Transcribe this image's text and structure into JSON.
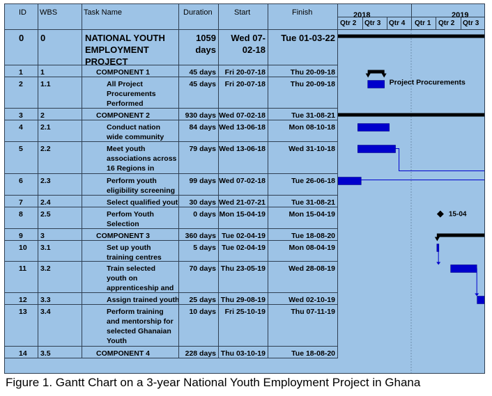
{
  "caption": "Figure 1. Gantt Chart on a 3-year National Youth Employment Project in Ghana",
  "columns": {
    "id": "ID",
    "wbs": "WBS",
    "task": "Task Name",
    "duration": "Duration",
    "start": "Start",
    "finish": "Finish"
  },
  "timeline": {
    "years": [
      {
        "label": "2018"
      },
      {
        "label": "2019"
      }
    ],
    "quarters": [
      "Qtr 2",
      "Qtr 3",
      "Qtr 4",
      "Qtr 1",
      "Qtr 2",
      "Qtr 3"
    ]
  },
  "rows": [
    {
      "id": "0",
      "wbs": "0",
      "name": "NATIONAL YOUTH EMPLOYMENT PROJECT",
      "duration": "1059 days",
      "start": "Wed 07-02-18",
      "finish": "Tue 01-03-22",
      "level": 0
    },
    {
      "id": "1",
      "wbs": "1",
      "name": "COMPONENT 1",
      "duration": "45 days",
      "start": "Fri 20-07-18",
      "finish": "Thu 20-09-18",
      "level": 1
    },
    {
      "id": "2",
      "wbs": "1.1",
      "name": "All Project Procurements Performed",
      "duration": "45 days",
      "start": "Fri 20-07-18",
      "finish": "Thu 20-09-18",
      "level": 2
    },
    {
      "id": "3",
      "wbs": "2",
      "name": "COMPONENT 2",
      "duration": "930 days",
      "start": "Wed 07-02-18",
      "finish": "Tue 31-08-21",
      "level": 1
    },
    {
      "id": "4",
      "wbs": "2.1",
      "name": "Conduct nation wide community",
      "duration": "84 days",
      "start": "Wed 13-06-18",
      "finish": "Mon 08-10-18",
      "level": 2
    },
    {
      "id": "5",
      "wbs": "2.2",
      "name": "Meet youth associations across 16 Regions in",
      "duration": "79 days",
      "start": "Wed 13-06-18",
      "finish": "Wed 31-10-18",
      "level": 2
    },
    {
      "id": "6",
      "wbs": "2.3",
      "name": "Perform youth eligibility screening",
      "duration": "99 days",
      "start": "Wed 07-02-18",
      "finish": "Tue 26-06-18",
      "level": 2
    },
    {
      "id": "7",
      "wbs": "2.4",
      "name": "Select qualified youth",
      "duration": "30 days",
      "start": "Wed 21-07-21",
      "finish": "Tue 31-08-21",
      "level": 2
    },
    {
      "id": "8",
      "wbs": "2.5",
      "name": "Perfom Youth Selection",
      "duration": "0 days",
      "start": "Mon 15-04-19",
      "finish": "Mon 15-04-19",
      "level": 2
    },
    {
      "id": "9",
      "wbs": "3",
      "name": "COMPONENT 3",
      "duration": "360 days",
      "start": "Tue 02-04-19",
      "finish": "Tue 18-08-20",
      "level": 1
    },
    {
      "id": "10",
      "wbs": "3.1",
      "name": "Set up youth training centres",
      "duration": "5 days",
      "start": "Tue 02-04-19",
      "finish": "Mon 08-04-19",
      "level": 2
    },
    {
      "id": "11",
      "wbs": "3.2",
      "name": "Train selected youth on apprenticeship and",
      "duration": "70 days",
      "start": "Thu 23-05-19",
      "finish": "Wed 28-08-19",
      "level": 2
    },
    {
      "id": "12",
      "wbs": "3.3",
      "name": "Assign trained youth to mentors",
      "duration": "25 days",
      "start": "Thu 29-08-19",
      "finish": "Wed 02-10-19",
      "level": 2
    },
    {
      "id": "13",
      "wbs": "3.4",
      "name": "Perform training and mentorship for selected Ghanaian Youth",
      "duration": "10 days",
      "start": "Fri 25-10-19",
      "finish": "Thu 07-11-19",
      "level": 2
    },
    {
      "id": "14",
      "wbs": "3.5",
      "name": "COMPONENT 4",
      "duration": "228 days",
      "start": "Thu 03-10-19",
      "finish": "Tue 18-08-20",
      "level": 1
    }
  ],
  "chart_data": {
    "type": "gantt",
    "title": "",
    "axis_start": "2018-04-01",
    "axis_end": "2019-09-30",
    "tasks": [
      {
        "id": "0",
        "kind": "summary",
        "start": "2018-02-07",
        "finish": "2022-03-01"
      },
      {
        "id": "1",
        "kind": "summary",
        "start": "2018-07-20",
        "finish": "2018-09-20"
      },
      {
        "id": "2",
        "kind": "task",
        "start": "2018-07-20",
        "finish": "2018-09-20",
        "label": "Project Procurements"
      },
      {
        "id": "3",
        "kind": "summary",
        "start": "2018-02-07",
        "finish": "2021-08-31"
      },
      {
        "id": "4",
        "kind": "task",
        "start": "2018-06-13",
        "finish": "2018-10-08"
      },
      {
        "id": "5",
        "kind": "task",
        "start": "2018-06-13",
        "finish": "2018-10-31"
      },
      {
        "id": "6",
        "kind": "task",
        "start": "2018-02-07",
        "finish": "2018-06-26"
      },
      {
        "id": "8",
        "kind": "milestone",
        "start": "2019-04-15",
        "finish": "2019-04-15",
        "label": "15-04"
      },
      {
        "id": "9",
        "kind": "summary",
        "start": "2019-04-02",
        "finish": "2020-08-18"
      },
      {
        "id": "10",
        "kind": "task",
        "start": "2019-04-02",
        "finish": "2019-04-08"
      },
      {
        "id": "11",
        "kind": "task",
        "start": "2019-05-23",
        "finish": "2019-08-28"
      },
      {
        "id": "12",
        "kind": "task",
        "start": "2019-08-29",
        "finish": "2019-10-02"
      }
    ],
    "links": [
      {
        "from": "5",
        "to": "6"
      },
      {
        "from": "10",
        "to": "11"
      },
      {
        "from": "11",
        "to": "12"
      }
    ],
    "colors": {
      "background": "#9dc3e6",
      "task": "#0000cc",
      "summary": "#000000",
      "link": "#0000cc"
    }
  }
}
